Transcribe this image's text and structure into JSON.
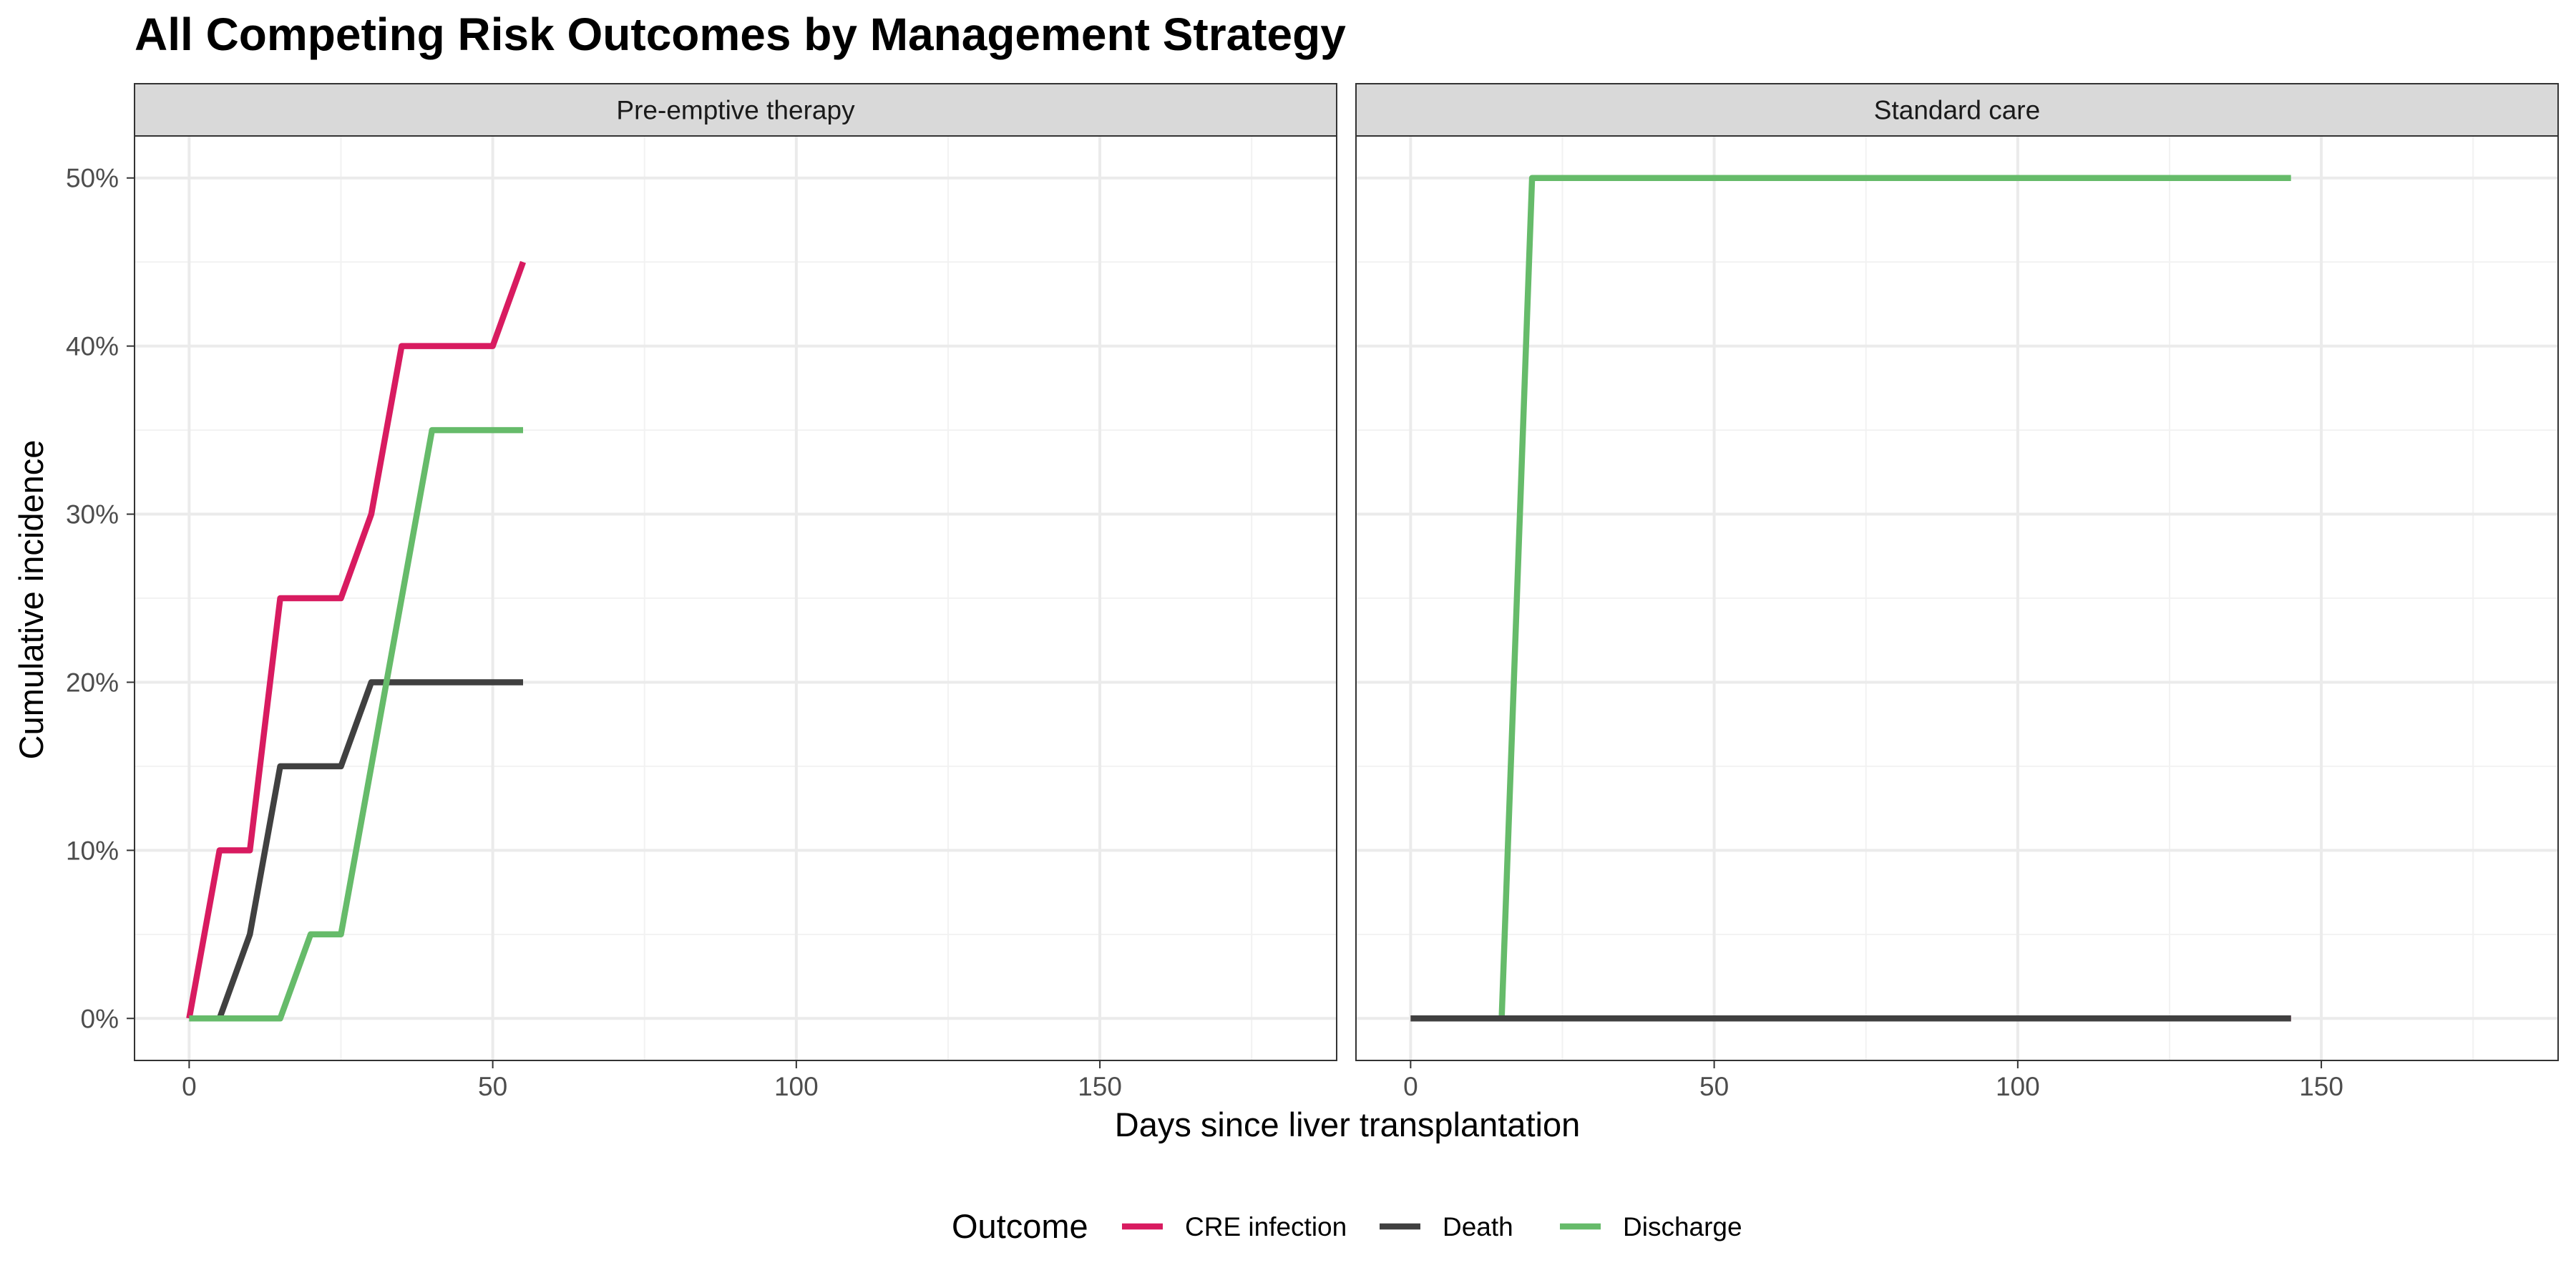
{
  "chart_data": {
    "type": "line",
    "title": "All Competing Risk Outcomes by Management Strategy",
    "xlabel": "Days since liver transplantation",
    "ylabel": "Cumulative incidence",
    "xlim": [
      -9,
      189
    ],
    "ylim": [
      -2.5,
      52.5
    ],
    "x_ticks": [
      0,
      50,
      100,
      150
    ],
    "y_ticks": [
      0,
      10,
      20,
      30,
      40,
      50
    ],
    "y_tick_labels": [
      "0%",
      "10%",
      "20%",
      "30%",
      "40%",
      "50%"
    ],
    "grid": true,
    "legend": {
      "title": "Outcome",
      "position": "bottom",
      "entries": [
        {
          "label": "CRE infection",
          "color": "#D81B60"
        },
        {
          "label": "Death",
          "color": "#404040"
        },
        {
          "label": "Discharge",
          "color": "#66BB6A"
        }
      ]
    },
    "panels": [
      {
        "label": "Pre-emptive therapy",
        "series": [
          {
            "name": "CRE infection",
            "color": "#D81B60",
            "x": [
              0,
              5,
              10,
              15,
              20,
              25,
              30,
              35,
              40,
              45,
              50,
              55
            ],
            "y": [
              0,
              10,
              10,
              25,
              25,
              25,
              30,
              40,
              40,
              40,
              40,
              45
            ]
          },
          {
            "name": "Death",
            "color": "#404040",
            "x": [
              0,
              5,
              10,
              15,
              20,
              25,
              30,
              35,
              40,
              45,
              50,
              55
            ],
            "y": [
              0,
              0,
              5,
              15,
              15,
              15,
              20,
              20,
              20,
              20,
              20,
              20
            ]
          },
          {
            "name": "Discharge",
            "color": "#66BB6A",
            "x": [
              0,
              5,
              10,
              15,
              20,
              25,
              30,
              35,
              40,
              45,
              50,
              55
            ],
            "y": [
              0,
              0,
              0,
              0,
              5,
              5,
              15,
              25,
              35,
              35,
              35,
              35
            ]
          }
        ]
      },
      {
        "label": "Standard care",
        "series": [
          {
            "name": "CRE infection",
            "color": "#D81B60",
            "x": [
              0,
              145
            ],
            "y": [
              0,
              0
            ]
          },
          {
            "name": "Discharge",
            "color": "#66BB6A",
            "x": [
              0,
              15,
              20,
              145
            ],
            "y": [
              0,
              0,
              50,
              50
            ]
          },
          {
            "name": "Death",
            "color": "#404040",
            "x": [
              0,
              15,
              145
            ],
            "y": [
              0,
              0,
              0
            ]
          }
        ]
      }
    ]
  }
}
